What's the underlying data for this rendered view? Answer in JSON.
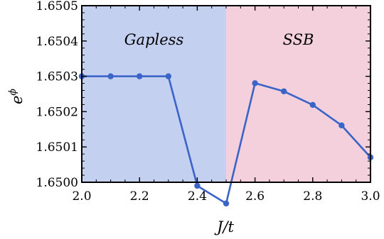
{
  "chart_data": {
    "type": "line",
    "xlabel": "J/t",
    "ylabel_base": "e",
    "ylabel_sup": "ϕ",
    "xlim": [
      2.0,
      3.0
    ],
    "ylim": [
      1.65,
      1.6505
    ],
    "x_ticks": [
      "2.0",
      "2.2",
      "2.4",
      "2.6",
      "2.8",
      "3.0"
    ],
    "y_ticks": [
      "1.6500",
      "1.6501",
      "1.6502",
      "1.6503",
      "1.6504",
      "1.6505"
    ],
    "grid": false,
    "regions": [
      {
        "label": "Gapless",
        "x_range": [
          2.0,
          2.5
        ],
        "color": "#c3d0f0"
      },
      {
        "label": "SSB",
        "x_range": [
          2.5,
          3.0
        ],
        "color": "#f3d0dc"
      }
    ],
    "series": [
      {
        "color": "#3a64c8",
        "x": [
          2.0,
          2.1,
          2.2,
          2.3,
          2.4,
          2.5,
          2.6,
          2.7,
          2.8,
          2.9,
          3.0
        ],
        "y": [
          1.6503,
          1.6503,
          1.6503,
          1.6503,
          1.64999,
          1.64994,
          1.6502805,
          1.6502575,
          1.650219,
          1.650161,
          1.6500705
        ]
      }
    ]
  }
}
